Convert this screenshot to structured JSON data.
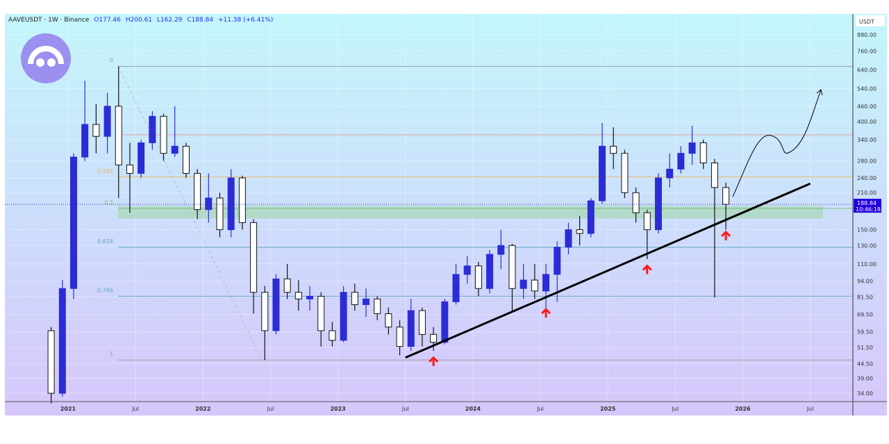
{
  "header": {
    "symbol": "AAVEUSDT · 1W · Binance",
    "open": "O177.46",
    "high": "H200.61",
    "low": "L162.29",
    "close": "C188.84",
    "change": "+11.38 (+6.41%)"
  },
  "chart_data": {
    "type": "candlestick",
    "title": "AAVEUSDT · 1W · Binance",
    "y_scale": "log",
    "ylim": [
      31,
      1000
    ],
    "currency_label": "USDT",
    "y_ticks": [
      "880.00",
      "760.00",
      "640.00",
      "540.00",
      "460.00",
      "400.00",
      "340.00",
      "280.00",
      "240.00",
      "210.00",
      "150.00",
      "130.00",
      "110.00",
      "94.00",
      "81.50",
      "69.50",
      "59.50",
      "51.50",
      "44.50",
      "39.00",
      "34.00"
    ],
    "x_ticks": [
      "2021",
      "Jul",
      "2022",
      "Jul",
      "2023",
      "Jul",
      "2024",
      "Jul",
      "2025",
      "Jul",
      "2026",
      "Jul"
    ],
    "last_price": "188.84",
    "countdown": "10:46:18",
    "note": "approximate monthly aggregation of weekly candles [open, high, low, close]",
    "candles": [
      {
        "date": "2020-11",
        "ohlc": [
          60,
          62,
          31,
          34
        ]
      },
      {
        "date": "2020-12",
        "ohlc": [
          34,
          95,
          33,
          88
        ]
      },
      {
        "date": "2021-01",
        "ohlc": [
          88,
          300,
          80,
          290
        ]
      },
      {
        "date": "2021-02",
        "ohlc": [
          290,
          580,
          280,
          390
        ]
      },
      {
        "date": "2021-03",
        "ohlc": [
          390,
          470,
          300,
          350
        ]
      },
      {
        "date": "2021-04",
        "ohlc": [
          350,
          520,
          300,
          460
        ]
      },
      {
        "date": "2021-05",
        "ohlc": [
          460,
          660,
          200,
          270
        ]
      },
      {
        "date": "2021-06",
        "ohlc": [
          270,
          330,
          175,
          250
        ]
      },
      {
        "date": "2021-07",
        "ohlc": [
          250,
          340,
          240,
          330
        ]
      },
      {
        "date": "2021-08",
        "ohlc": [
          330,
          440,
          310,
          420
        ]
      },
      {
        "date": "2021-09",
        "ohlc": [
          420,
          430,
          280,
          300
        ]
      },
      {
        "date": "2021-10",
        "ohlc": [
          300,
          460,
          290,
          320
        ]
      },
      {
        "date": "2021-11",
        "ohlc": [
          320,
          330,
          240,
          250
        ]
      },
      {
        "date": "2021-12",
        "ohlc": [
          250,
          260,
          165,
          180
        ]
      },
      {
        "date": "2022-01",
        "ohlc": [
          180,
          250,
          160,
          200
        ]
      },
      {
        "date": "2022-02",
        "ohlc": [
          200,
          210,
          140,
          150
        ]
      },
      {
        "date": "2022-03",
        "ohlc": [
          150,
          260,
          140,
          240
        ]
      },
      {
        "date": "2022-04",
        "ohlc": [
          240,
          245,
          150,
          160
        ]
      },
      {
        "date": "2022-05",
        "ohlc": [
          160,
          165,
          70,
          85
        ]
      },
      {
        "date": "2022-06",
        "ohlc": [
          85,
          90,
          46,
          60
        ]
      },
      {
        "date": "2022-07",
        "ohlc": [
          60,
          100,
          58,
          96
        ]
      },
      {
        "date": "2022-08",
        "ohlc": [
          96,
          110,
          80,
          85
        ]
      },
      {
        "date": "2022-09",
        "ohlc": [
          85,
          95,
          72,
          80
        ]
      },
      {
        "date": "2022-10",
        "ohlc": [
          80,
          90,
          72,
          82
        ]
      },
      {
        "date": "2022-11",
        "ohlc": [
          82,
          85,
          52,
          60
        ]
      },
      {
        "date": "2022-12",
        "ohlc": [
          60,
          65,
          52,
          55
        ]
      },
      {
        "date": "2023-01",
        "ohlc": [
          55,
          90,
          54,
          85
        ]
      },
      {
        "date": "2023-02",
        "ohlc": [
          85,
          92,
          72,
          76
        ]
      },
      {
        "date": "2023-03",
        "ohlc": [
          76,
          88,
          68,
          80
        ]
      },
      {
        "date": "2023-04",
        "ohlc": [
          80,
          82,
          66,
          70
        ]
      },
      {
        "date": "2023-05",
        "ohlc": [
          70,
          74,
          58,
          62
        ]
      },
      {
        "date": "2023-06",
        "ohlc": [
          62,
          66,
          48,
          52
        ]
      },
      {
        "date": "2023-07",
        "ohlc": [
          52,
          80,
          50,
          72
        ]
      },
      {
        "date": "2023-08",
        "ohlc": [
          72,
          74,
          52,
          58
        ]
      },
      {
        "date": "2023-09",
        "ohlc": [
          58,
          62,
          50,
          54
        ]
      },
      {
        "date": "2023-10",
        "ohlc": [
          54,
          80,
          53,
          78
        ]
      },
      {
        "date": "2023-11",
        "ohlc": [
          78,
          110,
          76,
          100
        ]
      },
      {
        "date": "2023-12",
        "ohlc": [
          100,
          118,
          92,
          108
        ]
      },
      {
        "date": "2024-01",
        "ohlc": [
          108,
          112,
          82,
          88
        ]
      },
      {
        "date": "2024-02",
        "ohlc": [
          88,
          125,
          84,
          120
        ]
      },
      {
        "date": "2024-03",
        "ohlc": [
          120,
          150,
          105,
          130
        ]
      },
      {
        "date": "2024-04",
        "ohlc": [
          130,
          132,
          72,
          88
        ]
      },
      {
        "date": "2024-05",
        "ohlc": [
          88,
          110,
          80,
          95
        ]
      },
      {
        "date": "2024-06",
        "ohlc": [
          95,
          110,
          80,
          86
        ]
      },
      {
        "date": "2024-07",
        "ohlc": [
          86,
          110,
          72,
          100
        ]
      },
      {
        "date": "2024-08",
        "ohlc": [
          100,
          135,
          78,
          128
        ]
      },
      {
        "date": "2024-09",
        "ohlc": [
          128,
          160,
          120,
          150
        ]
      },
      {
        "date": "2024-10",
        "ohlc": [
          150,
          170,
          130,
          145
        ]
      },
      {
        "date": "2024-11",
        "ohlc": [
          145,
          200,
          140,
          195
        ]
      },
      {
        "date": "2024-12",
        "ohlc": [
          195,
          395,
          190,
          320
        ]
      },
      {
        "date": "2025-01",
        "ohlc": [
          320,
          380,
          260,
          300
        ]
      },
      {
        "date": "2025-02",
        "ohlc": [
          300,
          310,
          200,
          210
        ]
      },
      {
        "date": "2025-03",
        "ohlc": [
          210,
          220,
          160,
          175
        ]
      },
      {
        "date": "2025-04",
        "ohlc": [
          175,
          180,
          115,
          150
        ]
      },
      {
        "date": "2025-05",
        "ohlc": [
          150,
          250,
          145,
          240
        ]
      },
      {
        "date": "2025-06",
        "ohlc": [
          240,
          300,
          220,
          260
        ]
      },
      {
        "date": "2025-07",
        "ohlc": [
          260,
          320,
          250,
          300
        ]
      },
      {
        "date": "2025-08",
        "ohlc": [
          300,
          385,
          270,
          330
        ]
      },
      {
        "date": "2025-09",
        "ohlc": [
          330,
          340,
          260,
          275
        ]
      },
      {
        "date": "2025-10",
        "ohlc": [
          275,
          285,
          81,
          220
        ]
      },
      {
        "date": "2025-11",
        "ohlc": [
          220,
          230,
          150,
          188.84
        ]
      }
    ],
    "fib_levels": [
      {
        "label": "0",
        "price": 660,
        "color": "#9e9e9e"
      },
      {
        "label": "0.382",
        "price": 242,
        "color": "#e6b36a"
      },
      {
        "label": "0.5",
        "price": 182,
        "color": "#7fbf7f"
      },
      {
        "label": "0.618",
        "price": 128,
        "color": "#5fa8c8"
      },
      {
        "label": "0.786",
        "price": 82,
        "color": "#5fa8c8"
      },
      {
        "label": "1",
        "price": 46,
        "color": "#9e9e9e"
      }
    ],
    "resistance_price": 355,
    "support_zone": [
      166,
      186
    ],
    "trendline": [
      {
        "date": "2023-07",
        "price": 47
      },
      {
        "date": "2026-07",
        "price": 228
      }
    ],
    "bounce_arrows": [
      "2023-09",
      "2024-07",
      "2025-04",
      "2025-11"
    ],
    "colors": {
      "up": "#2c2cd6",
      "down": "#111111",
      "arrow": "#ff1a1a",
      "price_tag": "#2200dd"
    }
  }
}
